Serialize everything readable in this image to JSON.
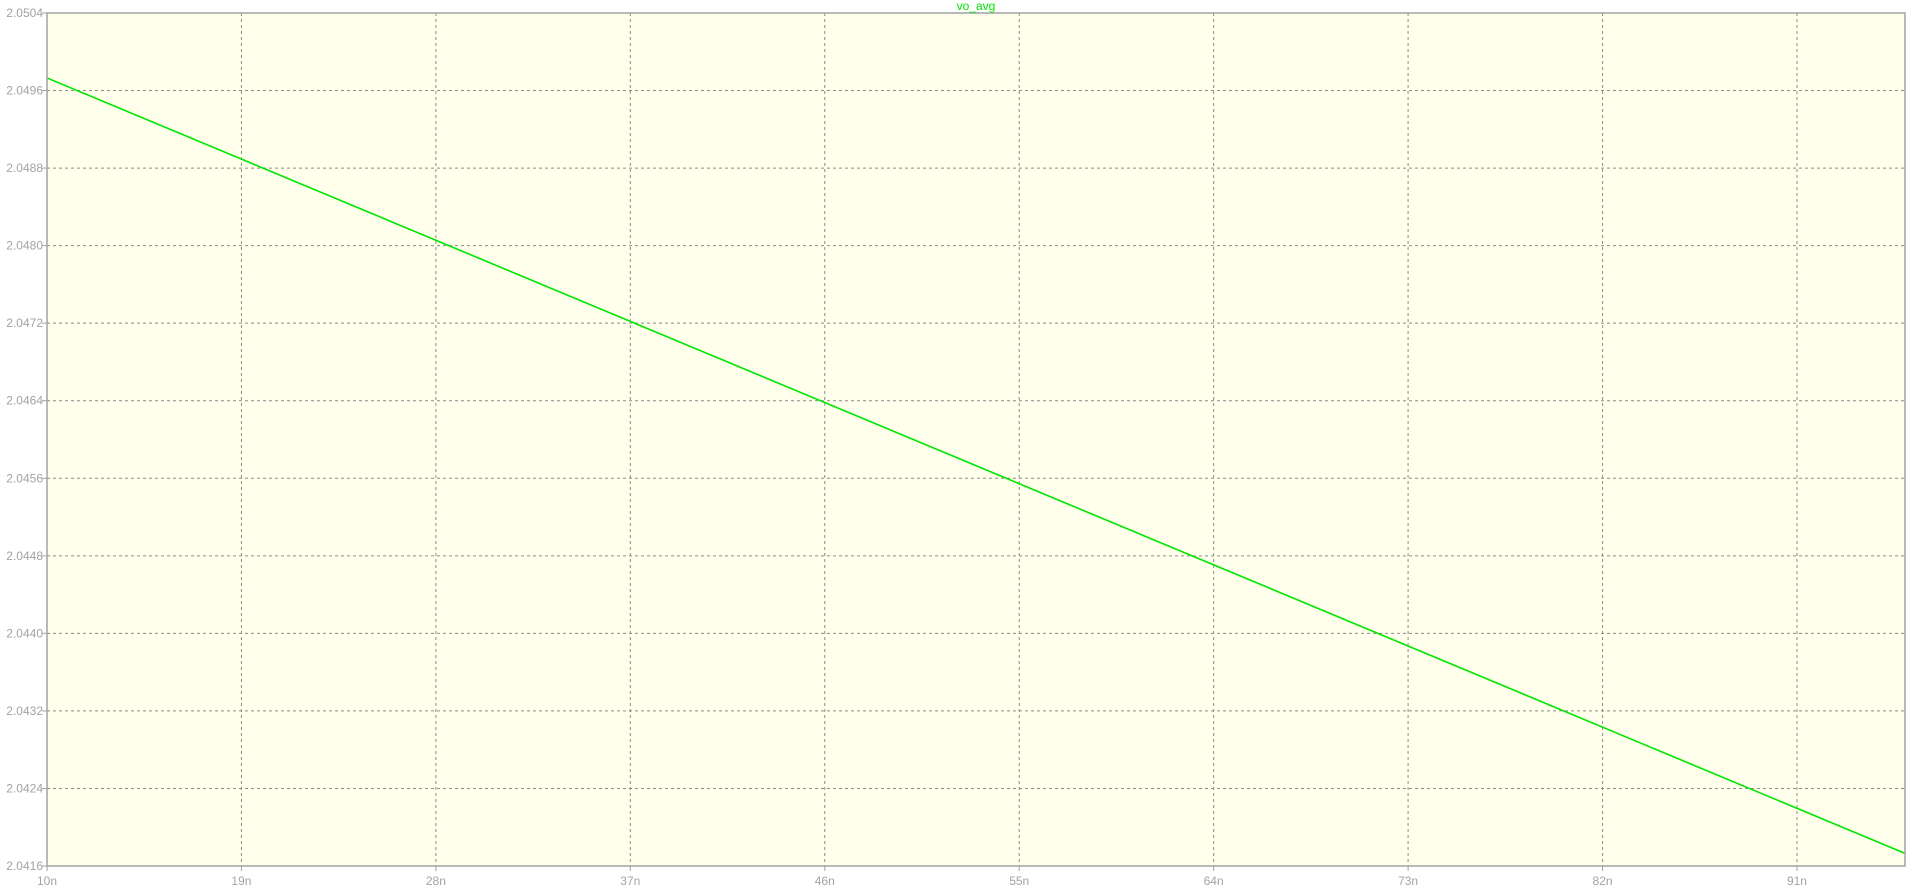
{
  "chart_data": {
    "type": "line",
    "series": [
      {
        "name": "vo_avg",
        "color": "#00e600",
        "x": [
          "10n",
          "96n"
        ],
        "x_values": [
          10,
          96
        ],
        "y": [
          2.04973,
          2.04173
        ]
      }
    ],
    "x_unit": "n",
    "xlim": [
      10,
      96
    ],
    "x_ticks": [
      10,
      19,
      28,
      37,
      46,
      55,
      64,
      73,
      82,
      91
    ],
    "x_tick_labels": [
      "10n",
      "19n",
      "28n",
      "37n",
      "46n",
      "55n",
      "64n",
      "73n",
      "82n",
      "91n"
    ],
    "ylim": [
      2.0416,
      2.0504
    ],
    "y_ticks": [
      2.0504,
      2.0496,
      2.0488,
      2.048,
      2.0472,
      2.0464,
      2.0456,
      2.0448,
      2.044,
      2.0432,
      2.0424,
      2.0416
    ],
    "y_tick_labels": [
      "2.0504",
      "2.0496",
      "2.0488",
      "2.0480",
      "2.0472",
      "2.0464",
      "2.0456",
      "2.0448",
      "2.0440",
      "2.0432",
      "2.0424",
      "2.0416"
    ],
    "grid": true,
    "grid_style": "dashed",
    "plot_background": "#ffffeb",
    "frame_color": "#a3a3a3",
    "grid_color": "#8c8c8c",
    "label_color": "#a3a3a3"
  }
}
